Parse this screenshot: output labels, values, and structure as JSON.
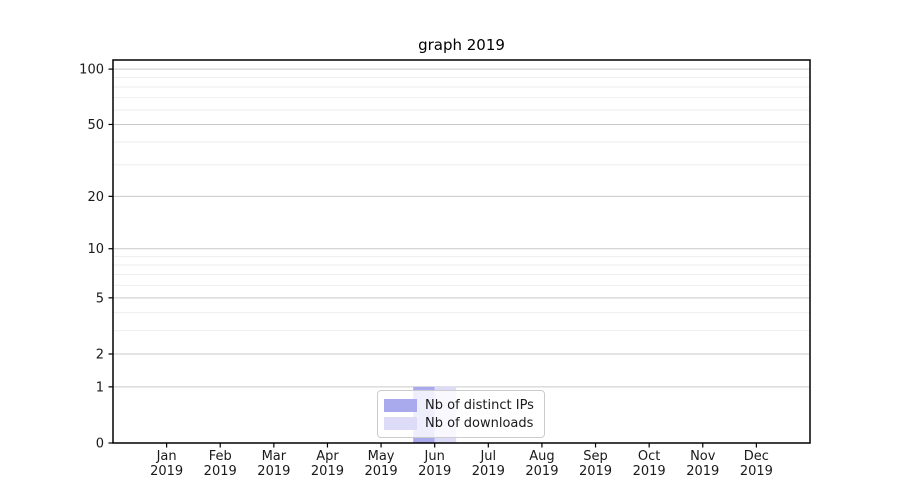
{
  "chart_data": {
    "type": "bar",
    "title": "graph 2019",
    "categories": [
      "Jan 2019",
      "Feb 2019",
      "Mar 2019",
      "Apr 2019",
      "May 2019",
      "Jun 2019",
      "Jul 2019",
      "Aug 2019",
      "Sep 2019",
      "Oct 2019",
      "Nov 2019",
      "Dec 2019"
    ],
    "x_tick_labels": [
      [
        "Jan",
        "2019"
      ],
      [
        "Feb",
        "2019"
      ],
      [
        "Mar",
        "2019"
      ],
      [
        "Apr",
        "2019"
      ],
      [
        "May",
        "2019"
      ],
      [
        "Jun",
        "2019"
      ],
      [
        "Jul",
        "2019"
      ],
      [
        "Aug",
        "2019"
      ],
      [
        "Sep",
        "2019"
      ],
      [
        "Oct",
        "2019"
      ],
      [
        "Nov",
        "2019"
      ],
      [
        "Dec",
        "2019"
      ]
    ],
    "series": [
      {
        "name": "Nb of distinct IPs",
        "color": "#a9a9ee",
        "values": [
          0,
          0,
          0,
          0,
          0,
          1,
          0,
          0,
          0,
          0,
          0,
          0
        ]
      },
      {
        "name": "Nb of downloads",
        "color": "#dcdcf8",
        "values": [
          0,
          0,
          0,
          0,
          0,
          1,
          0,
          0,
          0,
          0,
          0,
          0
        ]
      }
    ],
    "yscale": "log10(value+1)",
    "y_ticks": [
      0,
      1,
      2,
      5,
      10,
      20,
      50,
      100
    ],
    "y_minor_ticks": [
      3,
      4,
      6,
      7,
      8,
      9,
      30,
      40,
      60,
      70,
      80,
      90
    ],
    "ylim": [
      0,
      112
    ],
    "xlabel": "",
    "ylabel": "",
    "grid": "horizontal",
    "legend_position": "bottom-center"
  },
  "colors": {
    "axis": "#000000",
    "grid_major": "#c9c9c9",
    "grid_minor": "#eeeeee",
    "tick_label": "#1a1a1a",
    "legend_border": "#cccccc"
  }
}
